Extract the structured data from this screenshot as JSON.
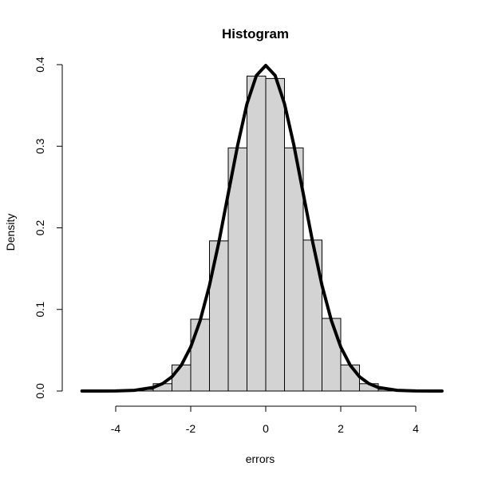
{
  "chart_data": {
    "type": "bar",
    "title": "Histogram",
    "xlabel": "errors",
    "ylabel": "Density",
    "xlim": [
      -5,
      4.75
    ],
    "ylim": [
      0,
      0.4
    ],
    "x_ticks": [
      -4,
      -2,
      0,
      2,
      4
    ],
    "x_tick_labels": [
      "-4",
      "-2",
      "0",
      "2",
      "4"
    ],
    "y_ticks": [
      0,
      0.1,
      0.2,
      0.3,
      0.4
    ],
    "y_tick_labels": [
      "0.0",
      "0.1",
      "0.2",
      "0.3",
      "0.4"
    ],
    "grid": false,
    "legend": "none",
    "histogram": {
      "bin_width": 0.5,
      "bin_starts": [
        -4.0,
        -3.5,
        -3.0,
        -2.5,
        -2.0,
        -1.5,
        -1.0,
        -0.5,
        0.0,
        0.5,
        1.0,
        1.5,
        2.0,
        2.5,
        3.0,
        3.5
      ],
      "density": [
        0.0004,
        0.002,
        0.009,
        0.032,
        0.088,
        0.184,
        0.298,
        0.386,
        0.383,
        0.298,
        0.185,
        0.089,
        0.032,
        0.009,
        0.002,
        0.0004
      ],
      "fill_color": "#d3d3d3"
    },
    "density_curve": {
      "x": [
        -4.9,
        -4.5,
        -4.0,
        -3.5,
        -3.0,
        -2.75,
        -2.5,
        -2.25,
        -2.0,
        -1.75,
        -1.5,
        -1.25,
        -1.0,
        -0.75,
        -0.5,
        -0.25,
        0.0,
        0.25,
        0.5,
        0.75,
        1.0,
        1.25,
        1.5,
        1.75,
        2.0,
        2.25,
        2.5,
        2.75,
        3.0,
        3.5,
        4.0,
        4.5,
        4.7
      ],
      "y": [
        0.0,
        0.0,
        0.0001,
        0.0009,
        0.0044,
        0.0091,
        0.0175,
        0.0317,
        0.054,
        0.0863,
        0.1295,
        0.1826,
        0.242,
        0.3011,
        0.3521,
        0.3867,
        0.399,
        0.3867,
        0.3521,
        0.3011,
        0.242,
        0.1826,
        0.1295,
        0.0863,
        0.054,
        0.0317,
        0.0175,
        0.0091,
        0.0044,
        0.0009,
        0.0001,
        0.0,
        0.0
      ],
      "color": "#000000"
    }
  }
}
